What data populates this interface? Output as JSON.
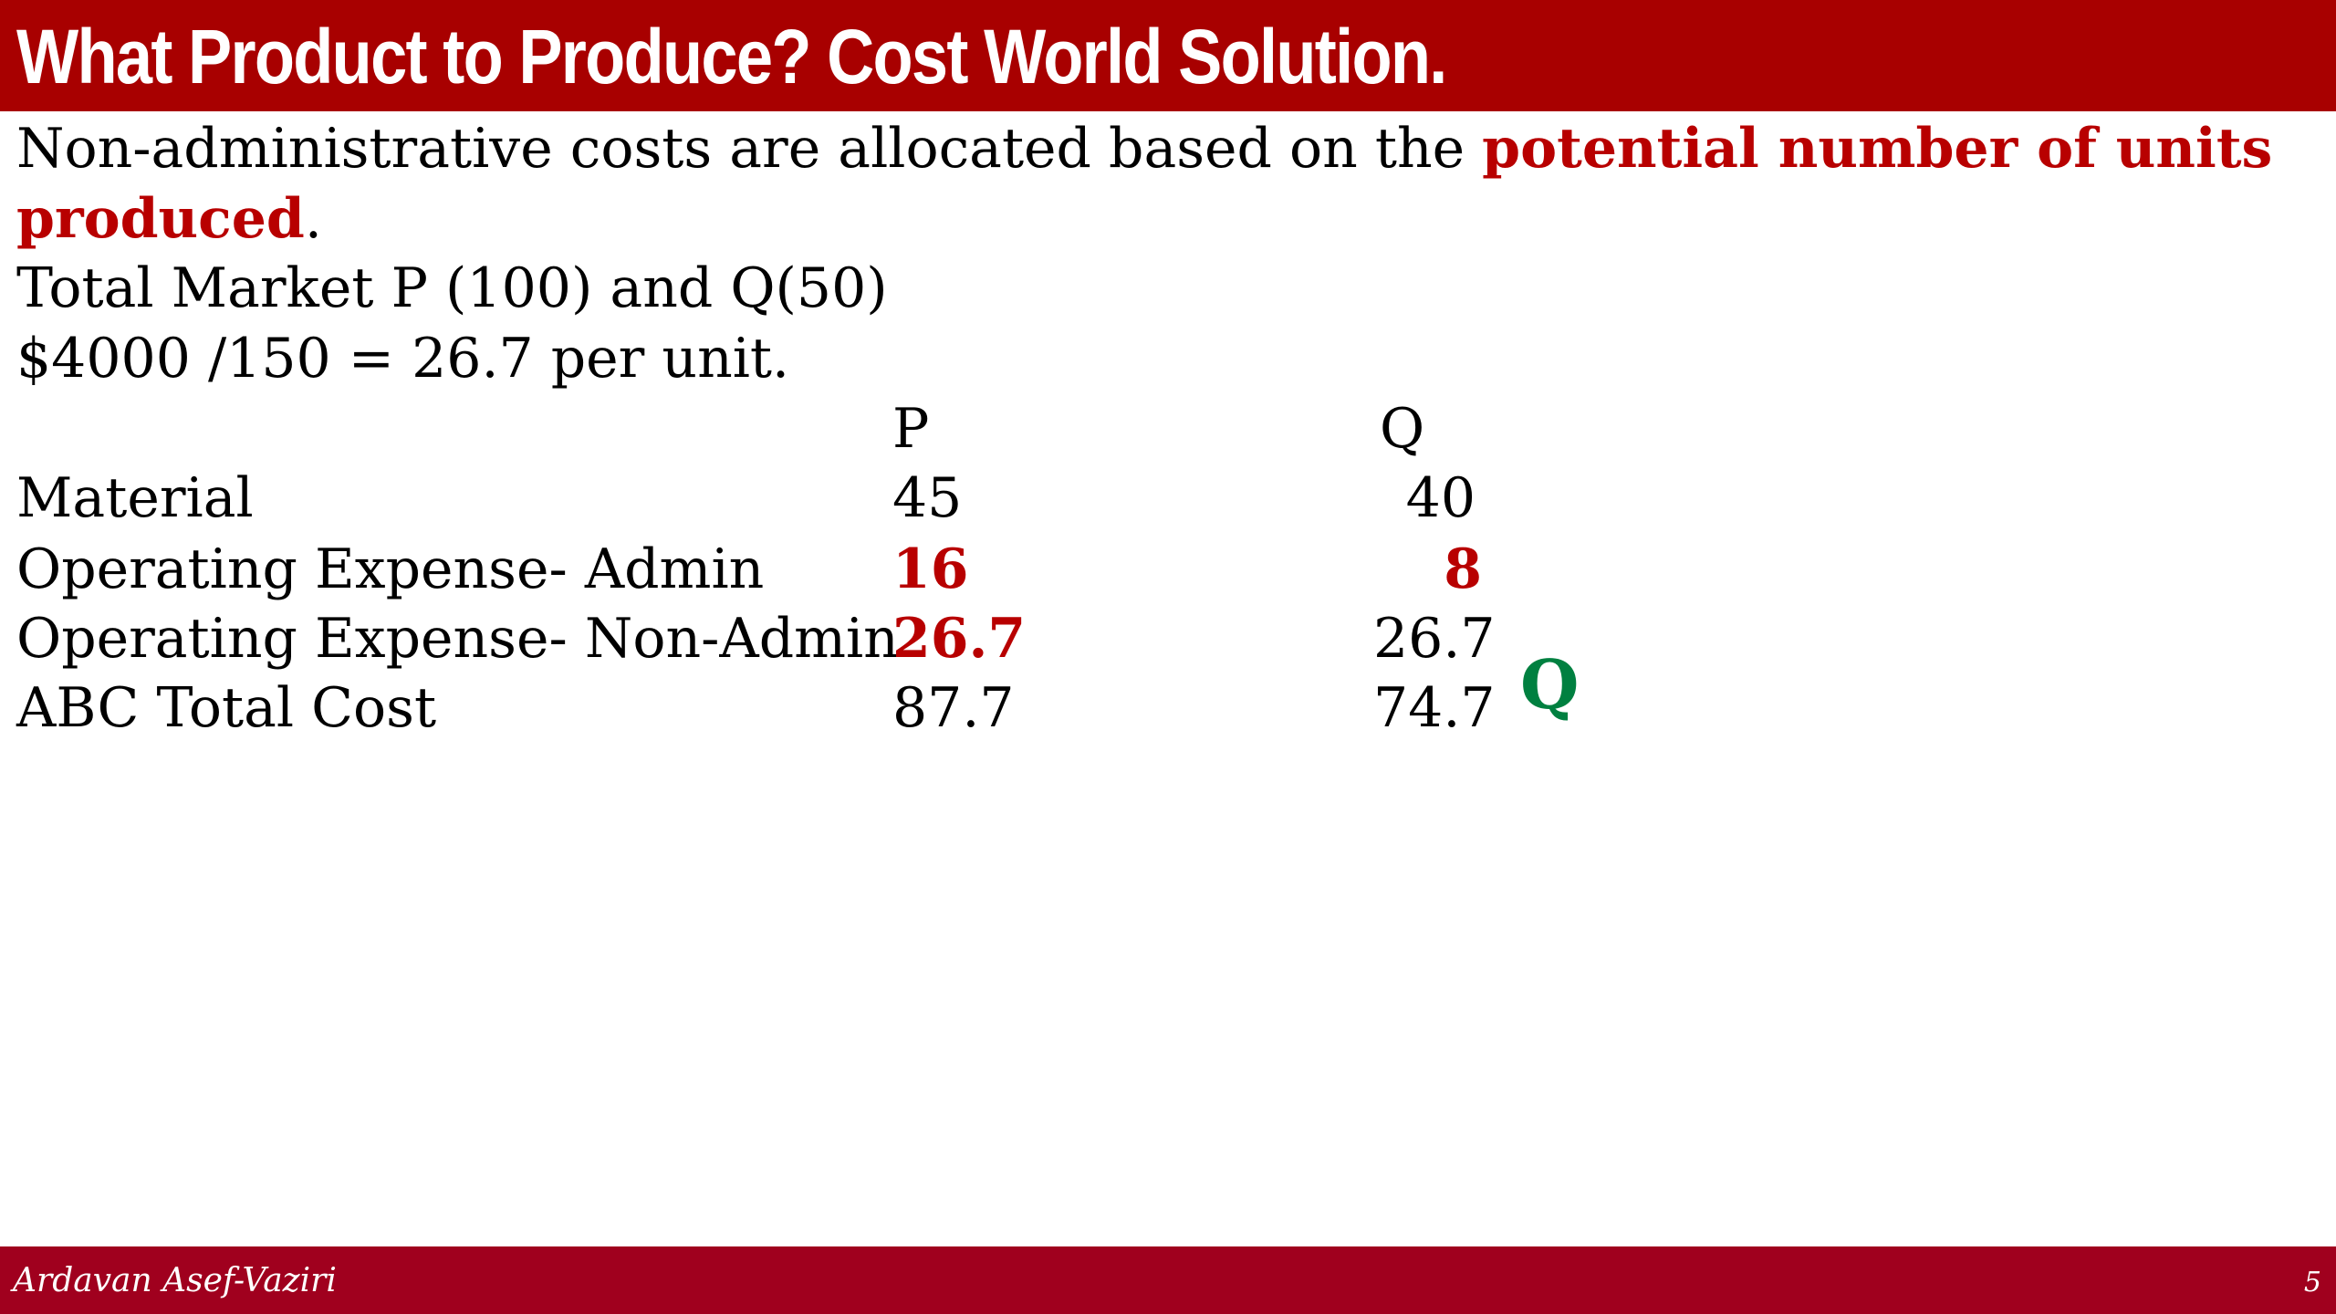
{
  "slide": {
    "title": "What Product to Produce? Cost World Solution.",
    "intro": {
      "prefix": "Non-administrative costs are allocated based on the ",
      "highlight_line1": "potential number of units",
      "highlight_line2": "produced",
      "suffix": "."
    },
    "line_market": "Total Market P (100) and Q(50)",
    "line_rate": "$4000 /150 = 26.7 per unit.",
    "table": {
      "headers": [
        "P",
        "Q"
      ],
      "rows": [
        {
          "label": "Material",
          "p": "45",
          "q": "40"
        },
        {
          "label": "Operating Expense- Admin",
          "p": "16",
          "q": "8"
        },
        {
          "label": "Operating Expense- Non-Admin",
          "p": "26.7",
          "q": "26.7"
        },
        {
          "label": "ABC Total Cost",
          "p": "87.7",
          "q": "74.7"
        }
      ]
    },
    "choice_marker": "Q"
  },
  "footer": {
    "author": "Ardavan Asef-Vaziri",
    "page_number": "5"
  },
  "colors": {
    "title_bar": "#a80000",
    "footer_bar": "#a0001e",
    "highlight_red": "#b80000",
    "marker_green": "#008040"
  }
}
